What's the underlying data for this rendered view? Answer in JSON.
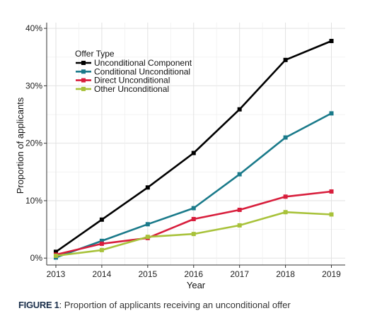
{
  "caption": {
    "figure_label": "FIGURE 1",
    "text": ": Proportion of applicants receiving an unconditional offer"
  },
  "chart_data": {
    "type": "line",
    "xlabel": "Year",
    "ylabel": "Proportion of applicants",
    "x": [
      2013,
      2014,
      2015,
      2016,
      2017,
      2018,
      2019
    ],
    "xlim": [
      2012.8,
      2019.3
    ],
    "ylim": [
      -1.2,
      41
    ],
    "y_ticks": [
      0,
      10,
      20,
      30,
      40
    ],
    "y_tick_labels": [
      "0%",
      "10%",
      "20%",
      "30%",
      "40%"
    ],
    "x_tick_labels": [
      "2013",
      "2014",
      "2015",
      "2016",
      "2017",
      "2018",
      "2019"
    ],
    "grid": true,
    "legend": {
      "title": "Offer Type",
      "placement": "top-left"
    },
    "series": [
      {
        "name": "Unconditional Component",
        "color": "#000000",
        "values": [
          1.1,
          6.7,
          12.3,
          18.3,
          25.9,
          34.5,
          37.8
        ]
      },
      {
        "name": "Conditional Unconditional",
        "color": "#1a7a8a",
        "values": [
          0.1,
          3.0,
          5.9,
          8.7,
          14.6,
          21.0,
          25.2
        ]
      },
      {
        "name": "Direct Unconditional",
        "color": "#d81e3c",
        "values": [
          0.6,
          2.5,
          3.5,
          6.8,
          8.4,
          10.7,
          11.6
        ]
      },
      {
        "name": "Other Unconditional",
        "color": "#a8c23a",
        "values": [
          0.4,
          1.4,
          3.7,
          4.2,
          5.7,
          8.0,
          7.6
        ]
      }
    ]
  }
}
